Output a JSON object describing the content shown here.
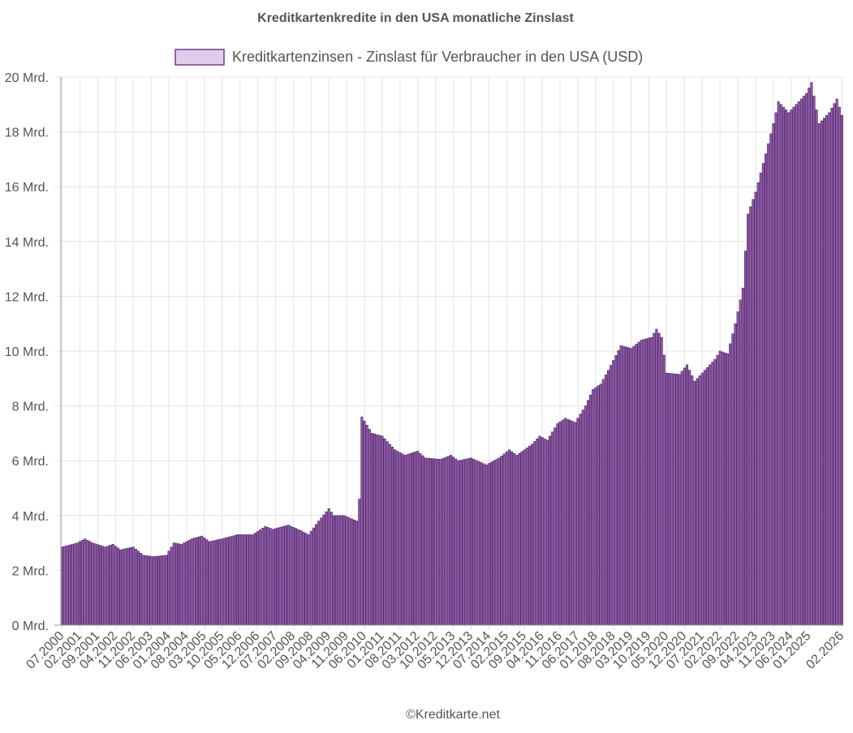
{
  "chart_data": {
    "type": "bar",
    "title": "Kreditkartenkredite in den USA monatliche Zinslast",
    "legend": {
      "label": "Kreditkartenzinsen - Zinslast für Verbraucher in den USA (USD)",
      "position": "top"
    },
    "footer": "©Kreditkarte.net",
    "unit_suffix": " Mrd.",
    "ylim": [
      0,
      20
    ],
    "y_ticks": [
      0,
      2,
      4,
      6,
      8,
      10,
      12,
      14,
      16,
      18,
      20
    ],
    "y_tick_labels": [
      "0 Mrd.",
      "2 Mrd.",
      "4 Mrd.",
      "6 Mrd.",
      "8 Mrd.",
      "10 Mrd.",
      "12 Mrd.",
      "14 Mrd.",
      "16 Mrd.",
      "18 Mrd.",
      "20 Mrd."
    ],
    "x_start": "07.2000",
    "x_end": "02.2026",
    "x_tick_labels": [
      "07.2000",
      "02.2001",
      "09.2001",
      "04.2002",
      "11.2002",
      "06.2003",
      "01.2004",
      "08.2004",
      "03.2005",
      "10.2005",
      "05.2006",
      "12.2006",
      "07.2007",
      "02.2008",
      "09.2008",
      "04.2009",
      "11.2009",
      "06.2010",
      "01.2011",
      "08.2011",
      "03.2012",
      "10.2012",
      "05.2013",
      "12.2013",
      "07.2014",
      "02.2015",
      "09.2015",
      "04.2016",
      "11.2016",
      "06.2017",
      "01.2018",
      "08.2018",
      "03.2019",
      "10.2019",
      "05.2020",
      "12.2020",
      "07.2021",
      "02.2022",
      "09.2022",
      "04.2023",
      "11.2023",
      "06.2024",
      "01.2025",
      "02.2026"
    ],
    "grid": true,
    "colors": {
      "fill": "#8e5ea8",
      "border": "#4e1a63",
      "legend_fill": "#e0cde9",
      "legend_border": "#7a3a92"
    },
    "anchors": [
      [
        "07.2000",
        2.85
      ],
      [
        "01.2001",
        3.0
      ],
      [
        "04.2001",
        3.15
      ],
      [
        "07.2001",
        3.0
      ],
      [
        "12.2001",
        2.85
      ],
      [
        "03.2002",
        2.95
      ],
      [
        "06.2002",
        2.75
      ],
      [
        "11.2002",
        2.85
      ],
      [
        "03.2003",
        2.55
      ],
      [
        "07.2003",
        2.5
      ],
      [
        "12.2003",
        2.55
      ],
      [
        "03.2004",
        3.0
      ],
      [
        "06.2004",
        2.95
      ],
      [
        "10.2004",
        3.15
      ],
      [
        "02.2005",
        3.25
      ],
      [
        "05.2005",
        3.05
      ],
      [
        "10.2005",
        3.15
      ],
      [
        "04.2006",
        3.3
      ],
      [
        "10.2006",
        3.3
      ],
      [
        "03.2007",
        3.6
      ],
      [
        "06.2007",
        3.5
      ],
      [
        "12.2007",
        3.65
      ],
      [
        "05.2008",
        3.45
      ],
      [
        "08.2008",
        3.3
      ],
      [
        "12.2008",
        3.8
      ],
      [
        "04.2009",
        4.25
      ],
      [
        "06.2009",
        4.0
      ],
      [
        "10.2009",
        4.0
      ],
      [
        "03.2010",
        3.8
      ],
      [
        "04.2010",
        4.6
      ],
      [
        "05.2010",
        7.6
      ],
      [
        "09.2010",
        7.0
      ],
      [
        "01.2011",
        6.9
      ],
      [
        "06.2011",
        6.4
      ],
      [
        "10.2011",
        6.2
      ],
      [
        "03.2012",
        6.35
      ],
      [
        "06.2012",
        6.1
      ],
      [
        "12.2012",
        6.05
      ],
      [
        "04.2013",
        6.2
      ],
      [
        "07.2013",
        6.0
      ],
      [
        "12.2013",
        6.1
      ],
      [
        "06.2014",
        5.85
      ],
      [
        "11.2014",
        6.1
      ],
      [
        "03.2015",
        6.4
      ],
      [
        "06.2015",
        6.2
      ],
      [
        "12.2015",
        6.6
      ],
      [
        "03.2016",
        6.9
      ],
      [
        "06.2016",
        6.75
      ],
      [
        "10.2016",
        7.35
      ],
      [
        "01.2017",
        7.55
      ],
      [
        "05.2017",
        7.4
      ],
      [
        "09.2017",
        8.0
      ],
      [
        "12.2017",
        8.6
      ],
      [
        "03.2018",
        8.8
      ],
      [
        "06.2018",
        9.3
      ],
      [
        "11.2018",
        10.2
      ],
      [
        "03.2019",
        10.1
      ],
      [
        "07.2019",
        10.4
      ],
      [
        "11.2019",
        10.5
      ],
      [
        "01.2020",
        10.8
      ],
      [
        "03.2020",
        10.5
      ],
      [
        "05.2020",
        9.2
      ],
      [
        "10.2020",
        9.15
      ],
      [
        "01.2021",
        9.5
      ],
      [
        "04.2021",
        8.9
      ],
      [
        "08.2021",
        9.3
      ],
      [
        "12.2021",
        9.7
      ],
      [
        "02.2022",
        10.0
      ],
      [
        "05.2022",
        9.9
      ],
      [
        "08.2022",
        11.0
      ],
      [
        "11.2022",
        12.3
      ],
      [
        "01.2023",
        15.0
      ],
      [
        "04.2023",
        15.8
      ],
      [
        "08.2023",
        17.2
      ],
      [
        "11.2023",
        18.3
      ],
      [
        "01.2024",
        19.1
      ],
      [
        "05.2024",
        18.7
      ],
      [
        "09.2024",
        19.1
      ],
      [
        "12.2024",
        19.4
      ],
      [
        "02.2025",
        19.8
      ],
      [
        "05.2025",
        18.3
      ],
      [
        "09.2025",
        18.7
      ],
      [
        "12.2025",
        19.2
      ],
      [
        "02.2026",
        18.6
      ]
    ]
  }
}
